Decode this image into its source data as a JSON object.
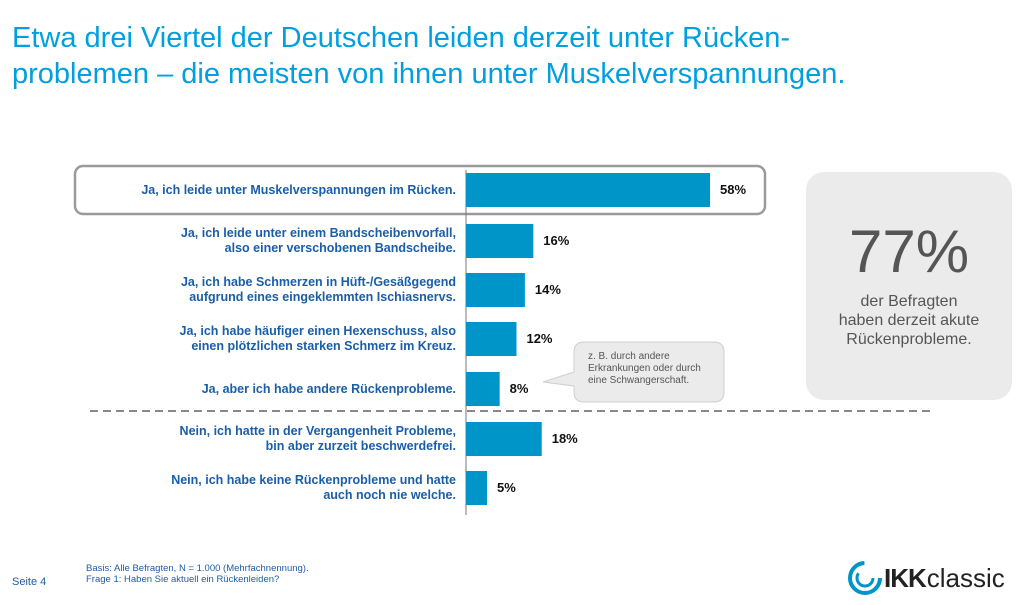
{
  "title": "Etwa drei Viertel der Deutschen leiden derzeit unter Rücken-\nproblemen – die meisten von ihnen unter Muskelverspannungen.",
  "chart_data": {
    "type": "bar",
    "orientation": "horizontal",
    "categories": [
      [
        "Ja, ich leide unter Muskelverspannungen im Rücken."
      ],
      [
        "Ja, ich leide unter einem Bandscheibenvorfall,",
        "also einer verschobenen Bandscheibe."
      ],
      [
        "Ja, ich habe Schmerzen in Hüft-/Gesäßgegend",
        "aufgrund eines eingeklemmten Ischiasnervs."
      ],
      [
        "Ja, ich habe häufiger einen Hexenschuss, also",
        "einen plötzlichen starken Schmerz im Kreuz."
      ],
      [
        "Ja, aber ich habe andere Rückenprobleme."
      ],
      [
        "Nein, ich hatte in der Vergangenheit Probleme,",
        "bin aber zurzeit beschwerdefrei."
      ],
      [
        "Nein, ich habe keine Rückenprobleme und hatte",
        "auch noch nie welche."
      ]
    ],
    "values": [
      58,
      16,
      14,
      12,
      8,
      18,
      5
    ],
    "value_labels": [
      "58%",
      "16%",
      "14%",
      "12%",
      "8%",
      "18%",
      "5%"
    ],
    "unit": "%",
    "highlighted_index": 0,
    "separator_after_index": 4,
    "bar_color": "#0095c8",
    "title": "",
    "xlabel": "",
    "ylabel": ""
  },
  "callout": {
    "big_value": "77%",
    "text": [
      "der Befragten",
      "haben derzeit akute",
      "Rückenprobleme."
    ]
  },
  "bubble": {
    "text": [
      "z. B. durch andere",
      "Erkrankungen oder durch",
      "eine Schwangerschaft."
    ]
  },
  "footer": {
    "page": "Seite 4",
    "note_lines": [
      "Basis: Alle Befragten, N = 1.000 (Mehrfachnennung).",
      "Frage 1: Haben Sie aktuell ein Rückenleiden?"
    ]
  },
  "logo": {
    "ikk": "IKK",
    "classic": "classic"
  }
}
